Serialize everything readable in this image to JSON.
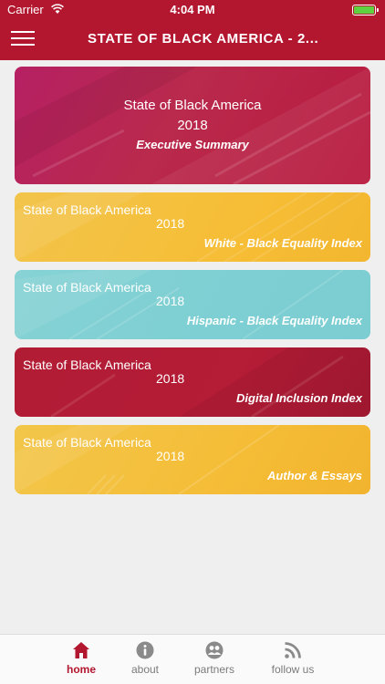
{
  "status_bar": {
    "carrier": "Carrier",
    "time": "4:04 PM",
    "icons": [
      "wifi-icon",
      "battery-icon"
    ]
  },
  "nav": {
    "title": "STATE OF BLACK AMERICA - 2...",
    "menu_icon": "hamburger-menu-icon"
  },
  "cards": [
    {
      "line1": "State of Black America",
      "line2": "2018",
      "subtitle": "Executive Summary",
      "color": "#b8214f"
    },
    {
      "line1": "State of Black America",
      "line2": "2018",
      "subtitle": "White - Black Equality Index",
      "color": "#f4bf3b"
    },
    {
      "line1": "State of Black America",
      "line2": "2018",
      "subtitle": "Hispanic - Black Equality Index",
      "color": "#80cfd3"
    },
    {
      "line1": "State of Black America",
      "line2": "2018",
      "subtitle": "Digital Inclusion Index",
      "color": "#b01b35"
    },
    {
      "line1": "State of Black America",
      "line2": "2018",
      "subtitle": "Author & Essays",
      "color": "#f4bd38"
    }
  ],
  "tabs": [
    {
      "label": "home",
      "icon": "home-icon",
      "active": true
    },
    {
      "label": "about",
      "icon": "info-icon",
      "active": false
    },
    {
      "label": "partners",
      "icon": "people-icon",
      "active": false
    },
    {
      "label": "follow us",
      "icon": "rss-icon",
      "active": false
    }
  ],
  "colors": {
    "brand_red": "#b3172f",
    "background": "#efefef",
    "tab_inactive": "#7b7b7b"
  }
}
